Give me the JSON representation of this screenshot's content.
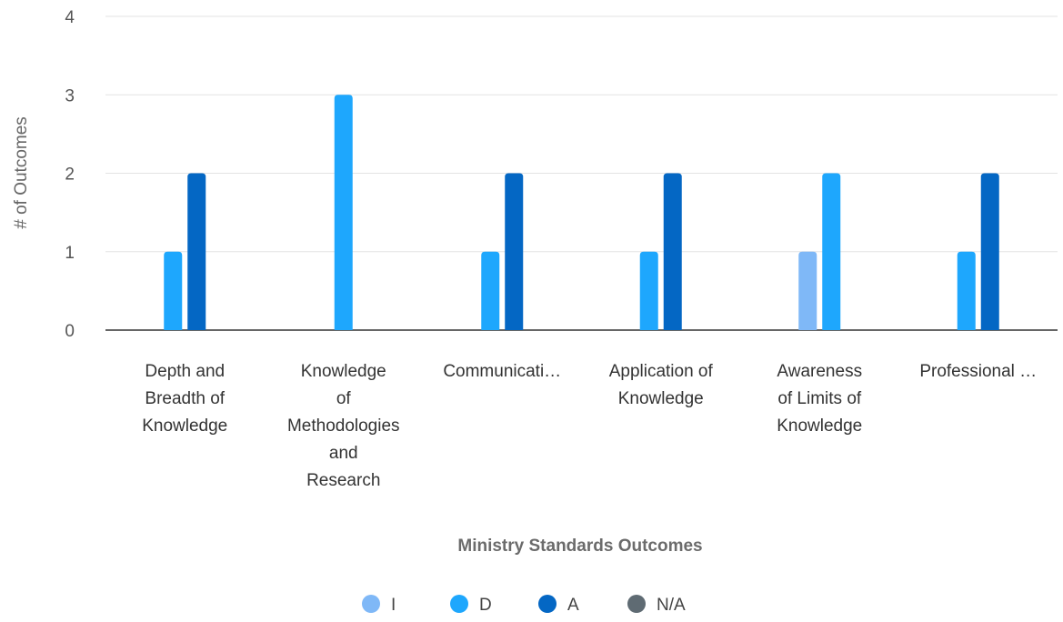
{
  "chart_data": {
    "type": "bar",
    "title": "",
    "xlabel": "Ministry Standards Outcomes",
    "ylabel": "# of Outcomes",
    "ylim": [
      0,
      4
    ],
    "yticks": [
      0,
      1,
      2,
      3,
      4
    ],
    "grid": true,
    "legend_position": "bottom",
    "categories": [
      "Depth and Breadth of Knowledge",
      "Knowledge of Methodologies and Research",
      "Communicati…",
      "Application of Knowledge",
      "Awareness of Limits of Knowledge",
      "Professional …"
    ],
    "category_lines": [
      [
        "Depth and",
        "Breadth of",
        "Knowledge"
      ],
      [
        "Knowledge",
        "of",
        "Methodologies",
        "and",
        "Research"
      ],
      [
        "Communicati…"
      ],
      [
        "Application of",
        "Knowledge"
      ],
      [
        "Awareness",
        "of Limits of",
        "Knowledge"
      ],
      [
        "Professional …"
      ]
    ],
    "series": [
      {
        "name": "I",
        "color": "#7fb8f7",
        "values": [
          0,
          0,
          0,
          0,
          1,
          0
        ]
      },
      {
        "name": "D",
        "color": "#1ea7fd",
        "values": [
          1,
          3,
          1,
          1,
          2,
          1
        ]
      },
      {
        "name": "A",
        "color": "#0467c4",
        "values": [
          2,
          0,
          2,
          2,
          0,
          2
        ]
      },
      {
        "name": "N/A",
        "color": "#5f6b73",
        "values": [
          0,
          0,
          0,
          0,
          0,
          0
        ]
      }
    ]
  }
}
